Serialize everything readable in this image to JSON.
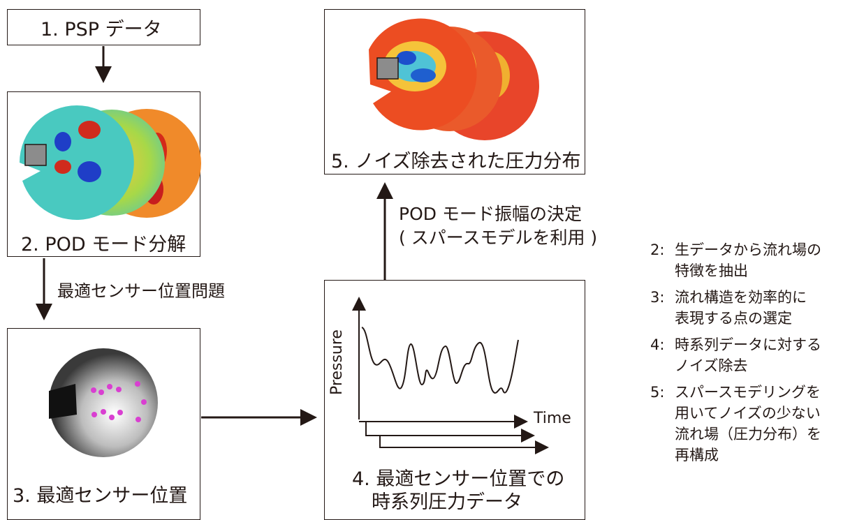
{
  "step1": {
    "label": "1. PSP データ"
  },
  "step2": {
    "label": "2. POD モード分解"
  },
  "step3": {
    "label": "3. 最適センサー位置"
  },
  "step4": {
    "label_line1": "4. 最適センサー位置での",
    "label_line2": "時系列圧力データ",
    "ylabel": "Pressure",
    "xlabel": "Time"
  },
  "step5": {
    "label": "5. ノイズ除去された圧力分布"
  },
  "arrow_2_3": {
    "label": "最適センサー位置問題"
  },
  "arrow_4_5": {
    "label_line1": "POD モード振幅の決定",
    "label_line2": "( スパースモデルを利用 )"
  },
  "notes": [
    {
      "num": "2:",
      "lines": [
        "生データから流れ場の",
        "特徴を抽出"
      ]
    },
    {
      "num": "3:",
      "lines": [
        "流れ構造を効率的に",
        "表現する点の選定"
      ]
    },
    {
      "num": "4:",
      "lines": [
        "時系列データに対する",
        "ノイズ除去"
      ]
    },
    {
      "num": "5:",
      "lines": [
        "スパースモデリングを",
        "用いてノイズの少ない",
        "流れ場（圧力分布）を",
        "再構成"
      ]
    }
  ],
  "colors": {
    "line": "#231815",
    "sensor": "#d93fd1",
    "obstacle": "#8c8c8c"
  }
}
